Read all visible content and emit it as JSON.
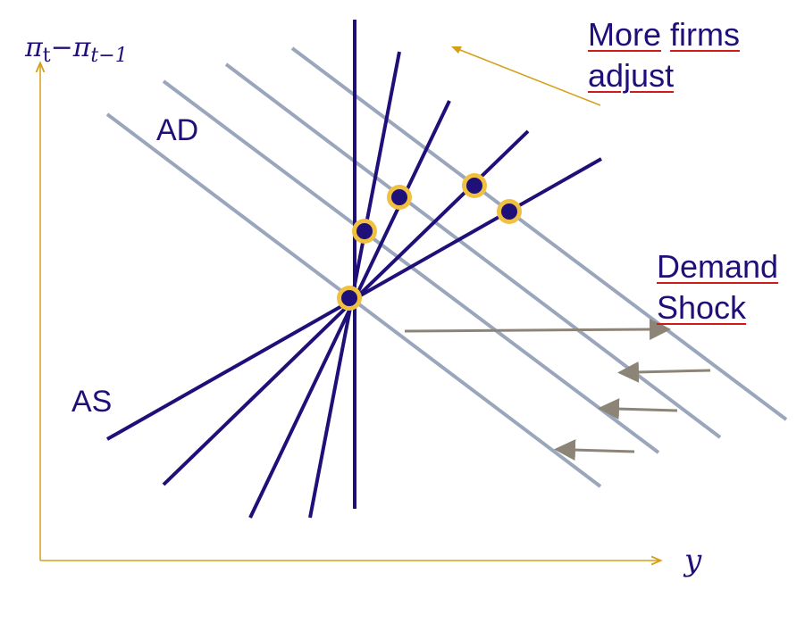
{
  "axes": {
    "y_label": {
      "base": "π",
      "sub1": "t",
      "minus": "−",
      "base2": "π",
      "sub2": "t−1"
    },
    "x_label": "y"
  },
  "labels": {
    "ad": "AD",
    "as": "AS",
    "more_firms_line1": "More firms",
    "more_firms_word1": "More",
    "more_firms_word2": "firms",
    "more_firms_line2": "adjust",
    "demand_line1": "Demand",
    "demand_line2": "Shock"
  },
  "colors": {
    "as_lines": "#1f0f78",
    "ad_lines": "#9aa6bc",
    "axes": "#d4a017",
    "arrows": "#8c8577",
    "points_fill": "#1f0f78",
    "points_ring": "#f0c040",
    "underline": "#d11a1a"
  }
}
